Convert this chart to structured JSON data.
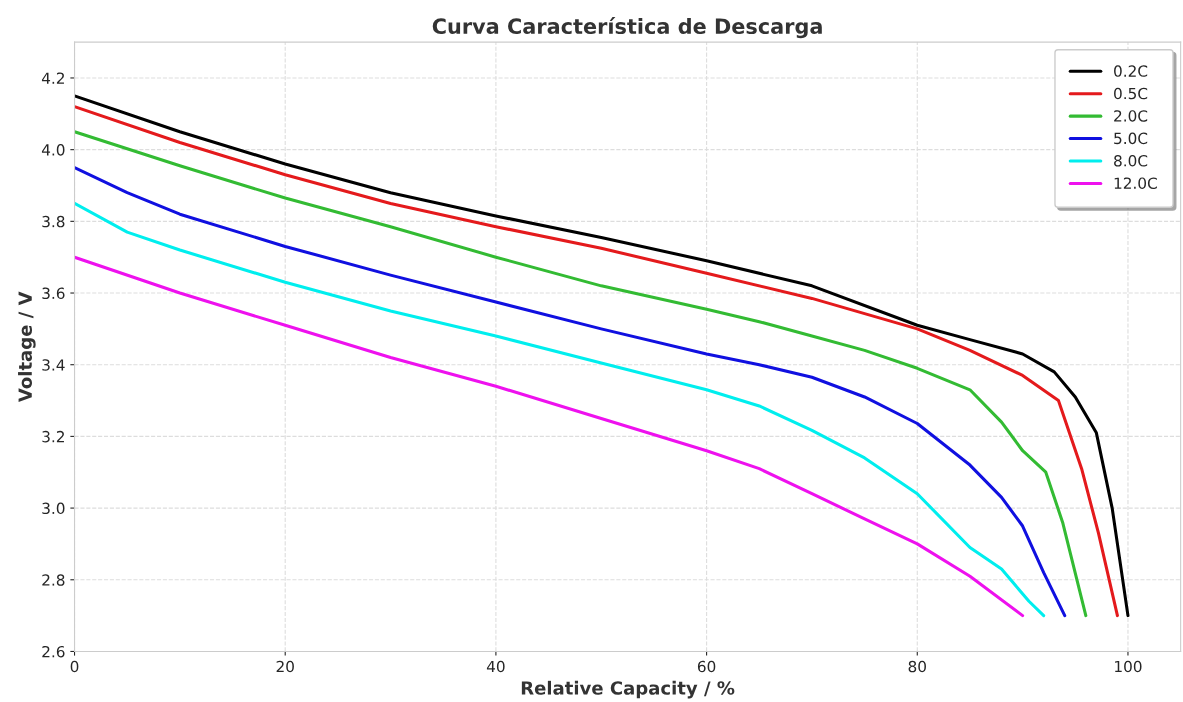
{
  "chart_data": {
    "type": "line",
    "title": "Curva Característica de Descarga",
    "xlabel": "Relative Capacity / %",
    "ylabel": "Voltage / V",
    "xlim": [
      0,
      105
    ],
    "xticks": [
      0,
      20,
      40,
      60,
      80,
      100
    ],
    "ylim": [
      2.6,
      4.3
    ],
    "yticks": [
      2.6,
      2.8,
      {
        "value": 3,
        "label": "3.0"
      },
      3.2,
      3.4,
      3.6,
      3.8,
      {
        "value": 4,
        "label": "4.0"
      },
      4.2
    ],
    "grid": true,
    "legend": "top right",
    "line_style": "solid",
    "series": [
      {
        "name": "0.2C",
        "color": "#000000",
        "x": [
          0,
          10,
          20,
          30,
          40,
          50,
          60,
          70,
          80,
          85,
          90,
          93,
          95,
          97,
          98.5,
          100
        ],
        "values": [
          4.15,
          4.05,
          3.96,
          3.88,
          3.815,
          3.755,
          3.69,
          3.62,
          3.51,
          3.47,
          3.43,
          3.38,
          3.31,
          3.21,
          3.0,
          2.7
        ]
      },
      {
        "name": "0.5C",
        "color": "#e41a1c",
        "x": [
          0,
          10,
          20,
          30,
          40,
          50,
          60,
          70,
          80,
          85,
          90,
          93.4,
          95.6,
          97.2,
          99
        ],
        "values": [
          4.12,
          4.02,
          3.93,
          3.85,
          3.785,
          3.725,
          3.655,
          3.585,
          3.5,
          3.44,
          3.37,
          3.3,
          3.11,
          2.93,
          2.7
        ]
      },
      {
        "name": "2.0C",
        "color": "#33bb33",
        "x": [
          0,
          10,
          20,
          30,
          40,
          50,
          60,
          65,
          70,
          75,
          80,
          85,
          88,
          90,
          92.2,
          93.8,
          96
        ],
        "values": [
          4.05,
          3.955,
          3.865,
          3.785,
          3.7,
          3.62,
          3.555,
          3.52,
          3.48,
          3.44,
          3.39,
          3.33,
          3.24,
          3.16,
          3.1,
          2.96,
          2.7
        ]
      },
      {
        "name": "5.0C",
        "color": "#1010e0",
        "x": [
          0,
          5,
          10,
          20,
          30,
          40,
          50,
          60,
          65,
          70,
          75,
          80,
          85,
          88,
          90,
          92,
          94
        ],
        "values": [
          3.95,
          3.88,
          3.82,
          3.73,
          3.65,
          3.575,
          3.5,
          3.43,
          3.4,
          3.365,
          3.31,
          3.236,
          3.12,
          3.03,
          2.95,
          2.82,
          2.7
        ]
      },
      {
        "name": "8.0C",
        "color": "#00eeee",
        "x": [
          0,
          5,
          10,
          20,
          30,
          40,
          50,
          60,
          65,
          70,
          75,
          80,
          85,
          88,
          90.6,
          92
        ],
        "values": [
          3.85,
          3.77,
          3.72,
          3.63,
          3.55,
          3.48,
          3.405,
          3.33,
          3.285,
          3.217,
          3.14,
          3.04,
          2.89,
          2.83,
          2.74,
          2.7
        ]
      },
      {
        "name": "12.0C",
        "color": "#ee11ee",
        "x": [
          0,
          10,
          20,
          30,
          40,
          50,
          60,
          65,
          70,
          75,
          80,
          85,
          90
        ],
        "values": [
          3.7,
          3.6,
          3.51,
          3.42,
          3.34,
          3.25,
          3.16,
          3.11,
          3.04,
          2.97,
          2.9,
          2.81,
          2.7
        ]
      }
    ]
  }
}
